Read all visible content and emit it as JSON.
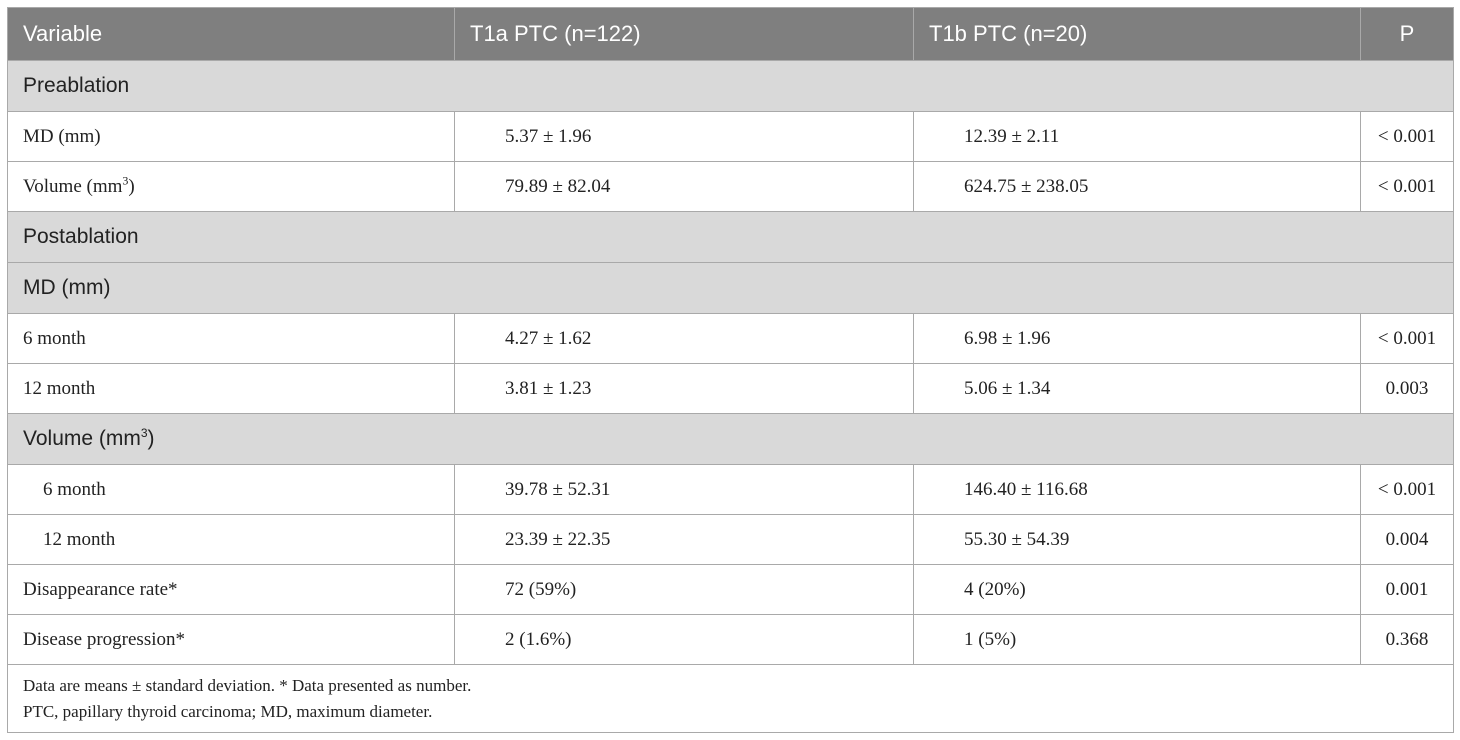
{
  "header": {
    "variable": "Variable",
    "t1a": "T1a PTC (n=122)",
    "t1b": "T1b PTC (n=20)",
    "p": "P"
  },
  "sections": {
    "preablation": "Preablation",
    "postablation": "Postablation",
    "md": "MD (mm)",
    "volume_base": "Volume (mm",
    "volume_sup": "3",
    "volume_close": ")"
  },
  "rows": [
    {
      "label": "MD (mm)",
      "t1a": "5.37 ± 1.96",
      "t1b": "12.39 ± 2.11",
      "p": "< 0.001"
    },
    {
      "label_base": "Volume (mm",
      "label_sup": "3",
      "label_close": ")",
      "t1a": "79.89 ± 82.04",
      "t1b": "624.75 ± 238.05",
      "p": "< 0.001"
    },
    {
      "label": "6 month",
      "t1a": "4.27 ± 1.62",
      "t1b": "6.98 ± 1.96",
      "p": "< 0.001"
    },
    {
      "label": "12 month",
      "t1a": "3.81 ± 1.23",
      "t1b": "5.06 ± 1.34",
      "p": "0.003"
    },
    {
      "label": "6 month",
      "t1a": "39.78 ± 52.31",
      "t1b": "146.40 ± 116.68",
      "p": "< 0.001"
    },
    {
      "label": "12 month",
      "t1a": "23.39 ± 22.35",
      "t1b": "55.30 ± 54.39",
      "p": "0.004"
    },
    {
      "label": "Disappearance rate*",
      "t1a": "72 (59%)",
      "t1b": "4 (20%)",
      "p": "0.001"
    },
    {
      "label": "Disease progression*",
      "t1a": "2 (1.6%)",
      "t1b": "1 (5%)",
      "p": "0.368"
    }
  ],
  "notes": {
    "line1": "Data are means ± standard deviation. * Data presented as number.",
    "line2": "PTC, papillary thyroid carcinoma; MD, maximum diameter."
  }
}
